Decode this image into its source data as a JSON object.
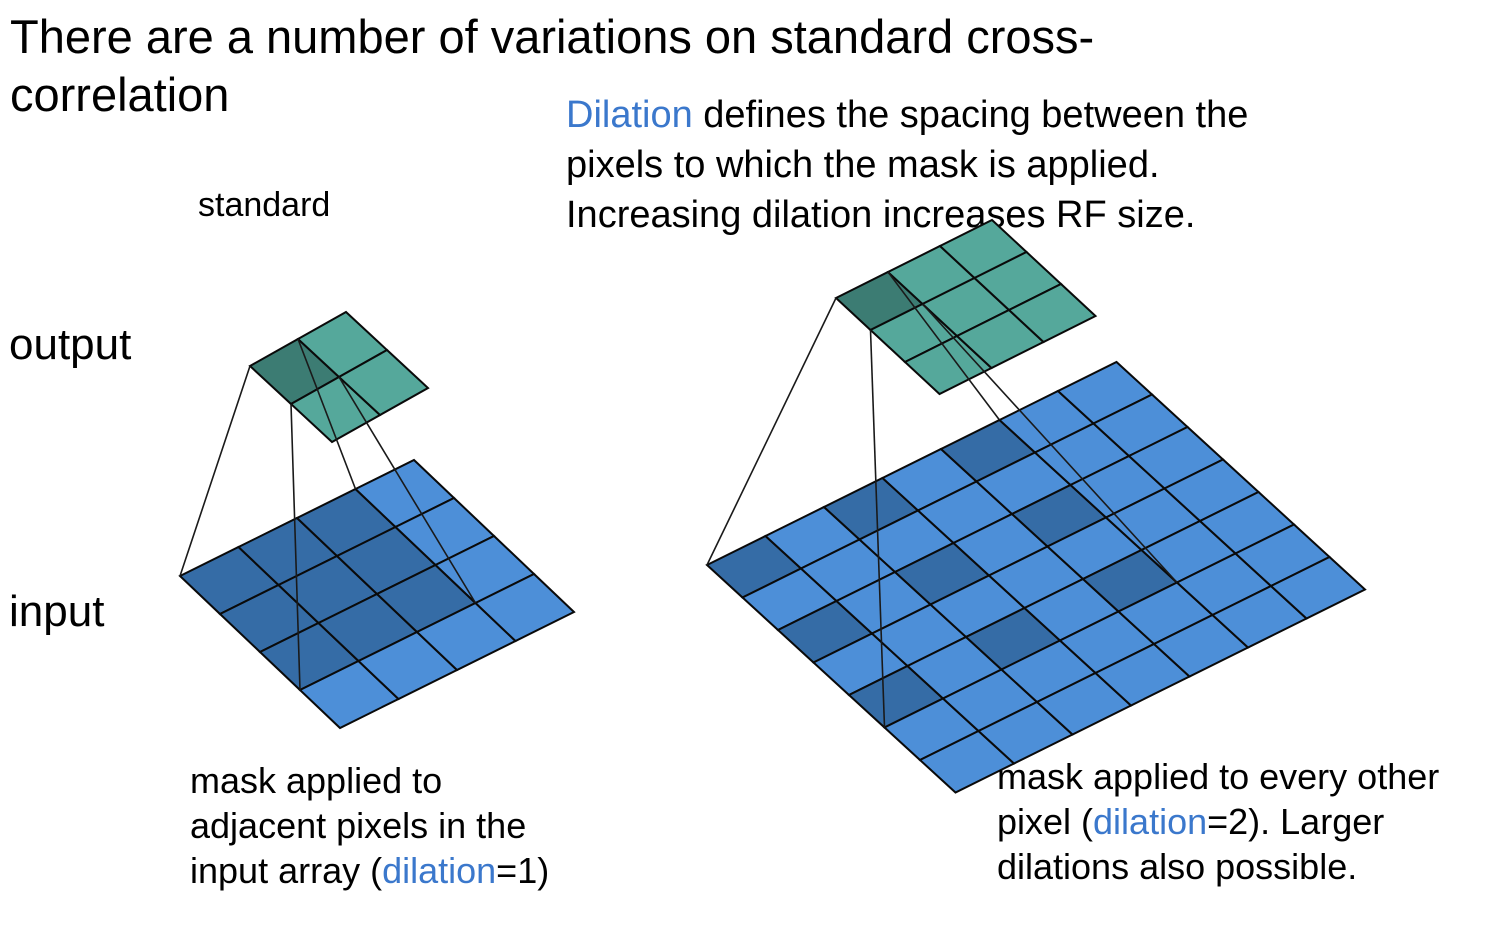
{
  "title": {
    "line1": "There are a number of variations on standard cross-",
    "line2": "correlation"
  },
  "description": {
    "highlight": "Dilation",
    "line1_rest": " defines the spacing between the",
    "line2": "pixels to which the mask is applied.",
    "line3": "Increasing dilation increases RF size."
  },
  "labels": {
    "standard": "standard",
    "output": "output",
    "input": "input"
  },
  "caption_left": {
    "line1": "mask applied to",
    "line2": "adjacent pixels in the",
    "line3_pre": "input array (",
    "line3_hl": "dilation",
    "line3_post": "=1)"
  },
  "caption_right": {
    "line1": "mask applied to every other",
    "line2_pre": "pixel (",
    "line2_hl": "dilation",
    "line2_post": "=2). Larger",
    "line3": "dilations also possible."
  },
  "diagrams": [
    {
      "name": "standard",
      "dilation": 1,
      "kernel_size": 3,
      "input_size": 4,
      "output_size": 2,
      "active_output": [
        0,
        0
      ]
    },
    {
      "name": "dilated",
      "dilation": 2,
      "kernel_size": 3,
      "input_size": 7,
      "output_size": 3,
      "active_output": [
        0,
        0
      ]
    }
  ],
  "colors": {
    "input": "#4d8fd8",
    "input_active": "#356ca6",
    "output": "#55a89b",
    "output_active": "#3c7c73",
    "grid_line": "#0a0a0a",
    "highlight_text": "#3b78cc"
  }
}
